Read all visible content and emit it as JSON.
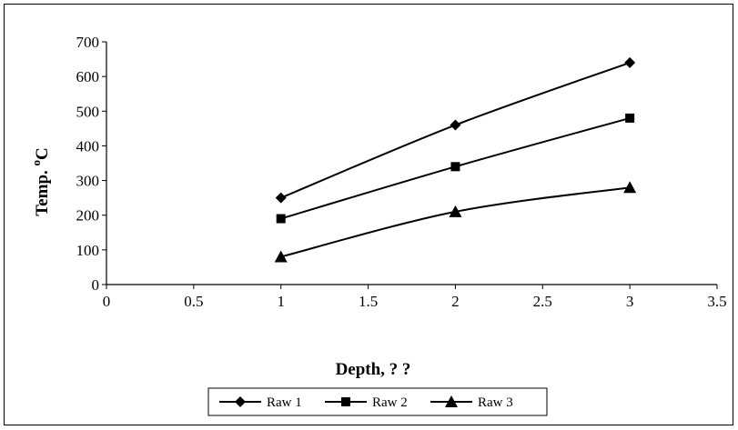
{
  "chart_data": {
    "type": "line",
    "title": "",
    "xlabel": "Depth, ? ?",
    "ylabel_main": "Temp. ",
    "ylabel_sup": "o",
    "ylabel_tail": "C",
    "xlim": [
      0,
      3.5
    ],
    "ylim": [
      0,
      700
    ],
    "x_ticks": [
      0,
      0.5,
      1,
      1.5,
      2,
      2.5,
      3,
      3.5
    ],
    "y_ticks": [
      0,
      100,
      200,
      300,
      400,
      500,
      600,
      700
    ],
    "grid": false,
    "legend_position": "bottom-center",
    "series": [
      {
        "name": "Raw 1",
        "marker": "diamond",
        "x": [
          1,
          2,
          3
        ],
        "y": [
          250,
          460,
          640
        ]
      },
      {
        "name": "Raw 2",
        "marker": "square",
        "x": [
          1,
          2,
          3
        ],
        "y": [
          190,
          340,
          480
        ]
      },
      {
        "name": "Raw 3",
        "marker": "triangle",
        "x": [
          1,
          2,
          3
        ],
        "y": [
          80,
          210,
          280
        ]
      }
    ]
  },
  "colors": {
    "series": "#000000",
    "background": "#ffffff"
  }
}
